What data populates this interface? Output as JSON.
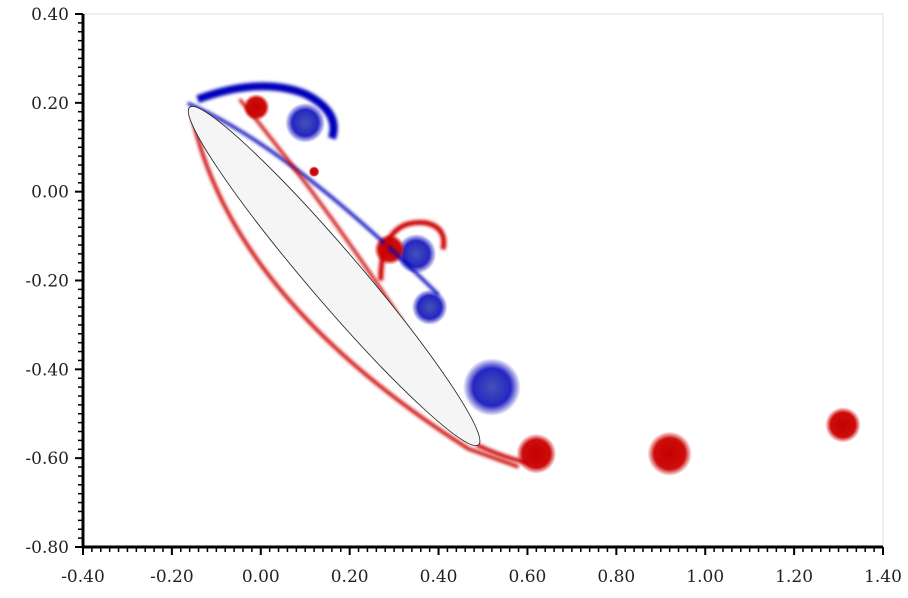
{
  "chart_data": {
    "type": "scatter",
    "title": "",
    "xlabel": "",
    "ylabel": "",
    "xlim": [
      -0.4,
      1.4
    ],
    "ylim": [
      -0.8,
      0.4
    ],
    "x_ticks": [
      "-0.40",
      "-0.20",
      "0.00",
      "0.20",
      "0.40",
      "0.60",
      "0.80",
      "1.00",
      "1.20",
      "1.40"
    ],
    "y_ticks": [
      "0.40",
      "0.20",
      "0.00",
      "-0.20",
      "-0.40",
      "-0.60",
      "-0.80"
    ],
    "x_tick_values": [
      -0.4,
      -0.2,
      0.0,
      0.2,
      0.4,
      0.6,
      0.8,
      1.0,
      1.2,
      1.4
    ],
    "y_tick_values": [
      0.4,
      0.2,
      0.0,
      -0.2,
      -0.4,
      -0.6,
      -0.8
    ],
    "grid": false,
    "airfoil": {
      "leading_edge": [
        -0.16,
        0.19
      ],
      "trailing_edge": [
        0.49,
        -0.57
      ],
      "fill_color": "#f5f5f5"
    },
    "colors": {
      "positive": "#cc0000",
      "negative": "#0000bb"
    },
    "vortices": [
      {
        "name": "lev-blue-top",
        "sign": "negative",
        "x": 0.1,
        "y": 0.155,
        "r": 0.045
      },
      {
        "name": "lev-red-top",
        "sign": "positive",
        "x": -0.01,
        "y": 0.19,
        "r": 0.03
      },
      {
        "name": "small-red",
        "sign": "positive",
        "x": 0.12,
        "y": 0.045,
        "r": 0.012
      },
      {
        "name": "mid-blue",
        "sign": "negative",
        "x": 0.35,
        "y": -0.14,
        "r": 0.045
      },
      {
        "name": "mid-red-arc",
        "sign": "positive",
        "x": 0.29,
        "y": -0.13,
        "r": 0.035
      },
      {
        "name": "lower-blue",
        "sign": "negative",
        "x": 0.52,
        "y": -0.44,
        "r": 0.065
      },
      {
        "name": "lower-blue-2",
        "sign": "negative",
        "x": 0.38,
        "y": -0.26,
        "r": 0.04
      },
      {
        "name": "red-tip",
        "sign": "positive",
        "x": 0.62,
        "y": -0.59,
        "r": 0.045
      },
      {
        "name": "red-wake-1",
        "sign": "positive",
        "x": 0.92,
        "y": -0.59,
        "r": 0.05
      },
      {
        "name": "red-wake-2",
        "sign": "positive",
        "x": 1.31,
        "y": -0.525,
        "r": 0.04
      }
    ]
  }
}
